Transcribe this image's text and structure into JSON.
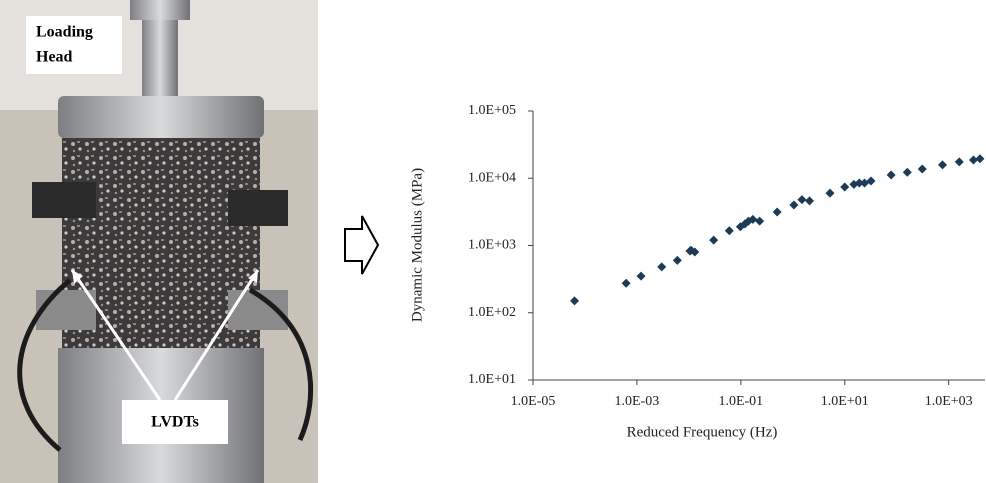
{
  "photo": {
    "labels": [
      "Loading",
      "Head",
      "LVDTs"
    ]
  },
  "chart_data": {
    "type": "scatter",
    "x_label": "Reduced Frequency (Hz)",
    "y_label": "Dynamic Modulus (MPa)",
    "log_x": true,
    "log_y": true,
    "grid": false,
    "color": "#1d3a57",
    "xlim": [
      1e-05,
      5000
    ],
    "ylim": [
      10,
      100000
    ],
    "xticks": [
      {
        "value": 1e-05,
        "label": "1.0E-05"
      },
      {
        "value": 0.001,
        "label": "1.0E-03"
      },
      {
        "value": 0.1,
        "label": "1.0E-01"
      },
      {
        "value": 10,
        "label": "1.0E+01"
      },
      {
        "value": 1000,
        "label": "1.0E+03"
      }
    ],
    "yticks": [
      {
        "value": 10,
        "label": "1.0E+01"
      },
      {
        "value": 100,
        "label": "1.0E+02"
      },
      {
        "value": 1000,
        "label": "1.0E+03"
      },
      {
        "value": 10000,
        "label": "1.0E+04"
      },
      {
        "value": 100000,
        "label": "1.0E+05"
      }
    ],
    "x": [
      6.3e-05,
      0.00062,
      0.0012,
      0.003,
      0.006,
      0.0105,
      0.011,
      0.013,
      0.03,
      0.06,
      0.098,
      0.12,
      0.14,
      0.17,
      0.23,
      0.5,
      1.05,
      1.5,
      2.1,
      5.2,
      10,
      15,
      19,
      24,
      32,
      78,
      160,
      310,
      760,
      1600,
      3000,
      4000
    ],
    "values": [
      150,
      275,
      350,
      480,
      600,
      830,
      850,
      800,
      1200,
      1660,
      1900,
      2100,
      2300,
      2450,
      2300,
      3150,
      4000,
      4800,
      4600,
      6000,
      7400,
      8100,
      8500,
      8500,
      9100,
      11200,
      12300,
      13700,
      15800,
      17500,
      18700,
      19500
    ]
  }
}
